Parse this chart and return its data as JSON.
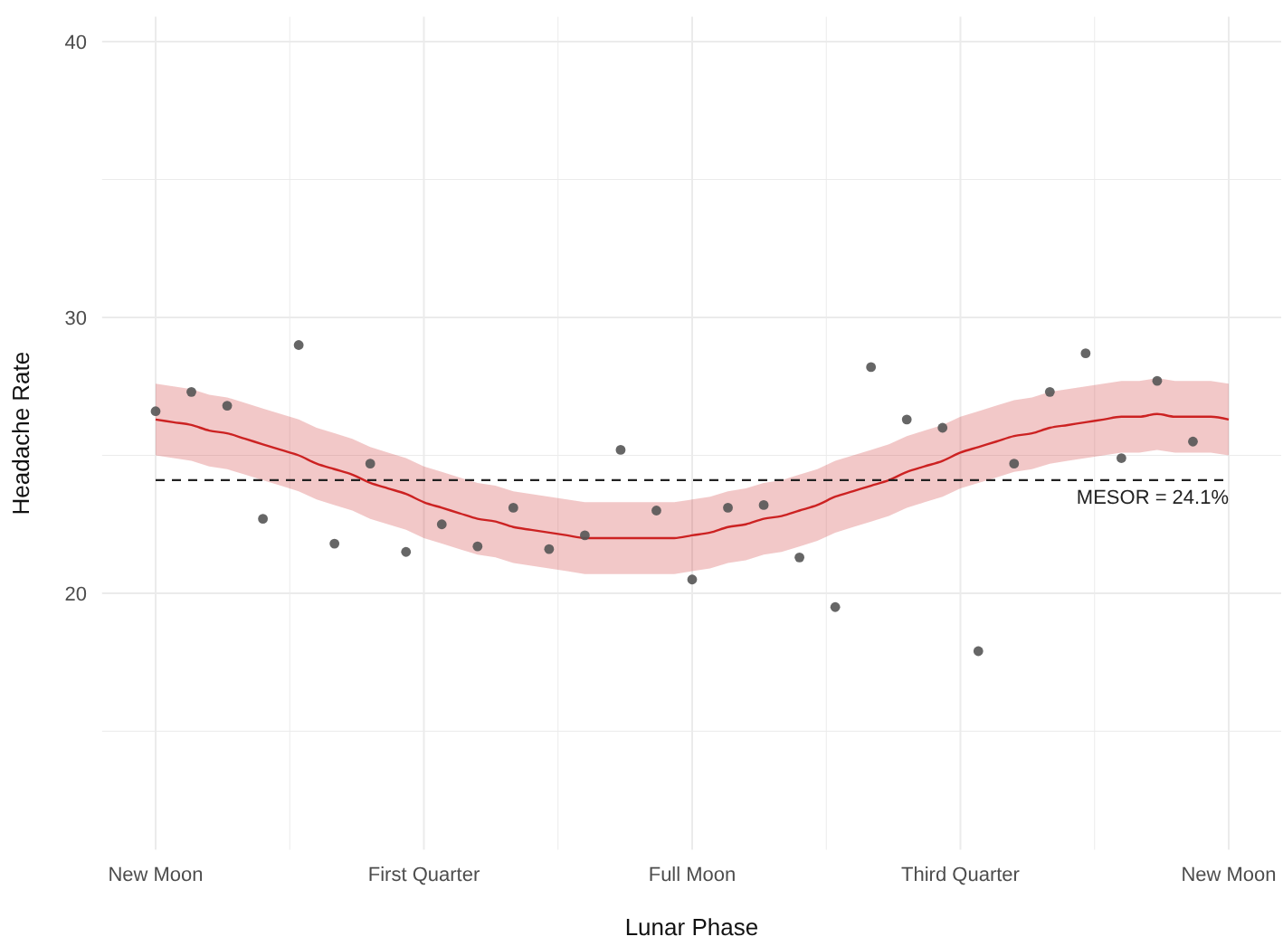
{
  "chart_data": {
    "type": "scatter",
    "xlabel": "Lunar Phase",
    "ylabel": "Headache Rate",
    "categories": [
      "New Moon",
      null,
      null,
      null,
      null,
      null,
      null,
      null,
      null,
      null,
      null,
      null,
      null,
      null,
      null,
      "First Quarter",
      null,
      null,
      null,
      null,
      null,
      null,
      null,
      null,
      null,
      null,
      null,
      null,
      null,
      null,
      "Full Moon",
      null,
      null,
      null,
      null,
      null,
      null,
      null,
      null,
      null,
      null,
      null,
      null,
      null,
      null,
      "Third Quarter",
      null,
      null,
      null,
      null,
      null,
      null,
      null,
      null,
      null,
      null,
      null,
      null,
      null,
      null,
      "New Moon"
    ],
    "ylim": [
      10.7,
      40.9
    ],
    "yticks": [
      {
        "value": 15,
        "label": null
      },
      20,
      {
        "value": 25,
        "label": null
      },
      30,
      {
        "value": 35,
        "label": null
      },
      40
    ],
    "grid": true,
    "marker": "circle",
    "series": [
      {
        "type": "line",
        "color": "#cc2222",
        "line_style": "solid",
        "marker": "none",
        "values": [
          26.3,
          26.2,
          26.1,
          25.9,
          25.8,
          25.6,
          25.4,
          25.2,
          25.0,
          24.7,
          24.5,
          24.3,
          24.0,
          23.8,
          23.6,
          23.3,
          23.1,
          22.9,
          22.7,
          22.6,
          22.4,
          22.3,
          22.2,
          22.1,
          22.0,
          22.0,
          22.0,
          22.0,
          22.0,
          22.0,
          22.1,
          22.2,
          22.4,
          22.5,
          22.7,
          22.8,
          23.0,
          23.2,
          23.5,
          23.7,
          23.9,
          24.1,
          24.4,
          24.6,
          24.8,
          25.1,
          25.3,
          25.5,
          25.7,
          25.8,
          26.0,
          26.1,
          26.2,
          26.3,
          26.4,
          26.4,
          26.5,
          26.4,
          26.4,
          26.4,
          26.3
        ],
        "lower": [
          25.0,
          24.9,
          24.8,
          24.6,
          24.5,
          24.3,
          24.1,
          23.9,
          23.7,
          23.4,
          23.2,
          23.0,
          22.7,
          22.5,
          22.3,
          22.0,
          21.8,
          21.6,
          21.4,
          21.3,
          21.1,
          21.0,
          20.9,
          20.8,
          20.7,
          20.7,
          20.7,
          20.7,
          20.7,
          20.7,
          20.8,
          20.9,
          21.1,
          21.2,
          21.4,
          21.5,
          21.7,
          21.9,
          22.2,
          22.4,
          22.6,
          22.8,
          23.1,
          23.3,
          23.5,
          23.8,
          24.0,
          24.2,
          24.4,
          24.5,
          24.7,
          24.8,
          24.9,
          25.0,
          25.1,
          25.1,
          25.2,
          25.1,
          25.1,
          25.1,
          25.0
        ],
        "upper": [
          27.6,
          27.5,
          27.4,
          27.2,
          27.1,
          26.9,
          26.7,
          26.5,
          26.3,
          26.0,
          25.8,
          25.6,
          25.3,
          25.1,
          24.9,
          24.6,
          24.4,
          24.2,
          24.0,
          23.9,
          23.7,
          23.6,
          23.5,
          23.4,
          23.3,
          23.3,
          23.3,
          23.3,
          23.3,
          23.3,
          23.4,
          23.5,
          23.7,
          23.8,
          24.0,
          24.1,
          24.3,
          24.5,
          24.8,
          25.0,
          25.2,
          25.4,
          25.7,
          25.9,
          26.1,
          26.4,
          26.6,
          26.8,
          27.0,
          27.1,
          27.3,
          27.4,
          27.5,
          27.6,
          27.7,
          27.7,
          27.8,
          27.7,
          27.7,
          27.7,
          27.6
        ]
      },
      {
        "color": "#555555",
        "values": [
          26.6,
          null,
          27.3,
          null,
          26.8,
          null,
          22.7,
          null,
          29.0,
          null,
          21.8,
          null,
          24.7,
          null,
          21.5,
          null,
          22.5,
          null,
          21.7,
          null,
          23.1,
          null,
          21.6,
          null,
          22.1,
          null,
          25.2,
          null,
          23.0,
          null,
          20.5,
          null,
          23.1,
          null,
          23.2,
          null,
          21.3,
          null,
          19.5,
          null,
          28.2,
          null,
          26.3,
          null,
          26.0,
          null,
          17.9,
          null,
          24.7,
          null,
          27.3,
          null,
          28.7,
          null,
          24.9,
          null,
          27.7,
          null,
          25.5,
          null,
          null
        ]
      }
    ],
    "ref_lines": [
      {
        "axis": "y",
        "value": 24.1,
        "label": "MESOR = 24.1%",
        "color": "#222222",
        "line_style": "dashed"
      }
    ]
  }
}
